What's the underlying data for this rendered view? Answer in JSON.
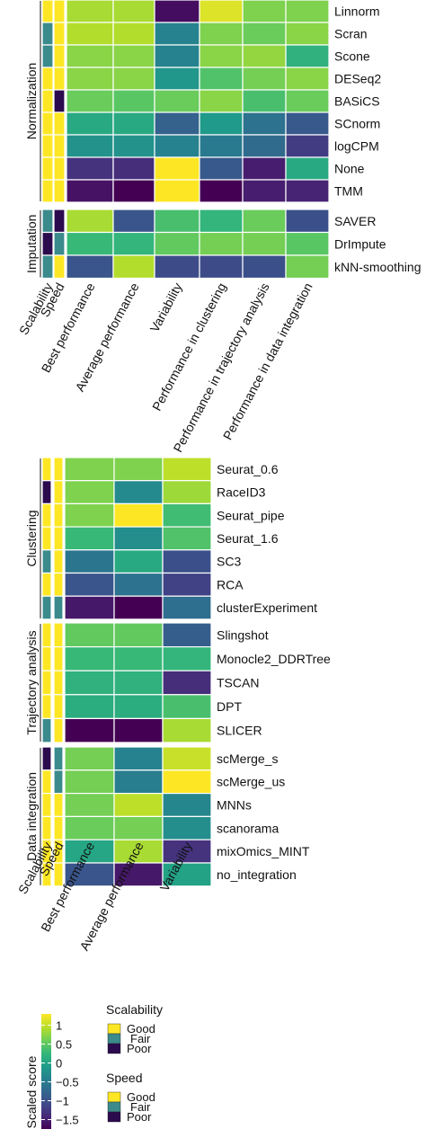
{
  "chart_data": [
    {
      "type": "heatmap",
      "name": "methods",
      "categories": [
        "Performance in clustering",
        "Performance in trajectory analysis",
        "Performance in data integration"
      ],
      "flag_labels": [
        "Scalability",
        "Speed"
      ],
      "score_labels": [
        "Best performance",
        "Average performance",
        "Variability"
      ],
      "groups": [
        {
          "label": "Normalization",
          "rows": [
            {
              "name": "Linnorm",
              "flags": [
                "Good",
                "Good"
              ],
              "values": [
                0.9,
                0.9,
                -1.65,
                1.15,
                0.7,
                0.7
              ]
            },
            {
              "name": "Scran",
              "flags": [
                "Fair",
                "Good"
              ],
              "values": [
                0.95,
                0.95,
                -0.4,
                0.7,
                0.6,
                0.75
              ]
            },
            {
              "name": "Scone",
              "flags": [
                "Fair",
                "Good"
              ],
              "values": [
                0.75,
                0.75,
                -0.4,
                0.75,
                0.8,
                0.2
              ]
            },
            {
              "name": "DESeq2",
              "flags": [
                "Good",
                "Good"
              ],
              "values": [
                0.75,
                0.75,
                -0.15,
                0.45,
                0.65,
                0.75
              ]
            },
            {
              "name": "BASiCS",
              "flags": [
                "Good",
                "Poor"
              ],
              "values": [
                0.6,
                0.5,
                0.6,
                0.75,
                0.4,
                0.6
              ]
            },
            {
              "name": "SCnorm",
              "flags": [
                "Good",
                "Good"
              ],
              "values": [
                0.1,
                0.1,
                -0.8,
                -0.1,
                -0.6,
                -0.9
              ]
            },
            {
              "name": "logCPM",
              "flags": [
                "Good",
                "Good"
              ],
              "values": [
                -0.2,
                -0.2,
                -0.4,
                -0.5,
                -0.7,
                -1.2
              ]
            },
            {
              "name": "None",
              "flags": [
                "Good",
                "Good"
              ],
              "values": [
                -1.3,
                -1.35,
                1.3,
                -0.9,
                -1.5,
                0.1
              ]
            },
            {
              "name": "TMM",
              "flags": [
                "Good",
                "Good"
              ],
              "values": [
                -1.6,
                -1.75,
                1.3,
                -1.75,
                -1.5,
                -1.45
              ]
            }
          ]
        },
        {
          "label": "Imputation",
          "rows": [
            {
              "name": "SAVER",
              "flags": [
                "Fair",
                "Poor"
              ],
              "values": [
                0.9,
                -0.95,
                0.4,
                0.25,
                0.6,
                -1.0
              ]
            },
            {
              "name": "DrImpute",
              "flags": [
                "Poor",
                "Fair"
              ],
              "values": [
                0.3,
                0.25,
                0.55,
                0.65,
                0.65,
                0.5
              ]
            },
            {
              "name": "kNN-smoothing",
              "flags": [
                "Fair",
                "Good"
              ],
              "values": [
                -0.95,
                0.95,
                -1.05,
                -1.05,
                -1.0,
                0.65
              ]
            }
          ]
        }
      ]
    },
    {
      "type": "heatmap",
      "name": "analysis",
      "flag_labels": [
        "Scalability",
        "Speed"
      ],
      "score_labels": [
        "Best performance",
        "Average performance",
        "Variability"
      ],
      "groups": [
        {
          "label": "Clustering",
          "rows": [
            {
              "name": "Seurat_0.6",
              "flags": [
                "Good",
                "Good"
              ],
              "values": [
                0.7,
                0.7,
                1.0
              ]
            },
            {
              "name": "RaceID3",
              "flags": [
                "Poor",
                "Good"
              ],
              "values": [
                0.7,
                -0.3,
                0.85
              ]
            },
            {
              "name": "Seurat_pipe",
              "flags": [
                "Good",
                "Good"
              ],
              "values": [
                0.7,
                1.4,
                0.35
              ]
            },
            {
              "name": "Seurat_1.6",
              "flags": [
                "Good",
                "Good"
              ],
              "values": [
                0.3,
                -0.25,
                0.45
              ]
            },
            {
              "name": "SC3",
              "flags": [
                "Fair",
                "Good"
              ],
              "values": [
                -0.55,
                0.1,
                -1.0
              ]
            },
            {
              "name": "RCA",
              "flags": [
                "Good",
                "Good"
              ],
              "values": [
                -0.95,
                -0.6,
                -1.15
              ]
            },
            {
              "name": "clusterExperiment",
              "flags": [
                "Fair",
                "Fair"
              ],
              "values": [
                -1.55,
                -1.75,
                -0.65
              ]
            }
          ]
        },
        {
          "label": "Trajectory analysis",
          "rows": [
            {
              "name": "Slingshot",
              "flags": [
                "Good",
                "Good"
              ],
              "values": [
                0.55,
                0.55,
                -0.85
              ]
            },
            {
              "name": "Monocle2_DDRTree",
              "flags": [
                "Good",
                "Good"
              ],
              "values": [
                0.3,
                0.3,
                0.25
              ]
            },
            {
              "name": "TSCAN",
              "flags": [
                "Good",
                "Good"
              ],
              "values": [
                0.2,
                0.2,
                -1.35
              ]
            },
            {
              "name": "DPT",
              "flags": [
                "Good",
                "Good"
              ],
              "values": [
                0.15,
                0.15,
                0.4
              ]
            },
            {
              "name": "SLICER",
              "flags": [
                "Fair",
                "Good"
              ],
              "values": [
                -1.75,
                -1.75,
                0.9
              ]
            }
          ]
        },
        {
          "label": "Data integration",
          "rows": [
            {
              "name": "scMerge_s",
              "flags": [
                "Poor",
                "Fair"
              ],
              "values": [
                0.65,
                -0.4,
                1.05
              ]
            },
            {
              "name": "scMerge_us",
              "flags": [
                "Good",
                "Fair"
              ],
              "values": [
                0.65,
                -0.45,
                1.5
              ]
            },
            {
              "name": "MNNs",
              "flags": [
                "Good",
                "Good"
              ],
              "values": [
                0.65,
                1.0,
                -0.35
              ]
            },
            {
              "name": "scanorama",
              "flags": [
                "Good",
                "Good"
              ],
              "values": [
                0.6,
                0.65,
                -0.25
              ]
            },
            {
              "name": "mixOmics_MINT",
              "flags": [
                "Good",
                "Good"
              ],
              "values": [
                0.05,
                0.9,
                -1.3
              ]
            },
            {
              "name": "no_integration",
              "flags": [
                "Good",
                "Good"
              ],
              "values": [
                -0.95,
                -1.55,
                0.0
              ]
            }
          ]
        }
      ]
    }
  ],
  "legend": {
    "colorbar_title": "Scaled score",
    "colorbar_ticks": [
      "1",
      "0.5",
      "0",
      "−0.5",
      "−1",
      "−1.5"
    ],
    "colorbar_tick_values": [
      1,
      0.5,
      0,
      -0.5,
      -1,
      -1.5
    ],
    "range": [
      -1.75,
      1.3
    ],
    "scalability_title": "Scalability",
    "speed_title": "Speed",
    "levels": [
      "Good",
      "Fair",
      "Poor"
    ]
  },
  "colors": {
    "flag_Good": "#fde725",
    "flag_Fair": "#3b8a8c",
    "flag_Poor": "#2c0a4e",
    "viridis": [
      "#440154",
      "#482878",
      "#3e4a89",
      "#31688e",
      "#26828e",
      "#1f9e89",
      "#35b779",
      "#6ece58",
      "#b5de2b",
      "#fde725"
    ]
  }
}
